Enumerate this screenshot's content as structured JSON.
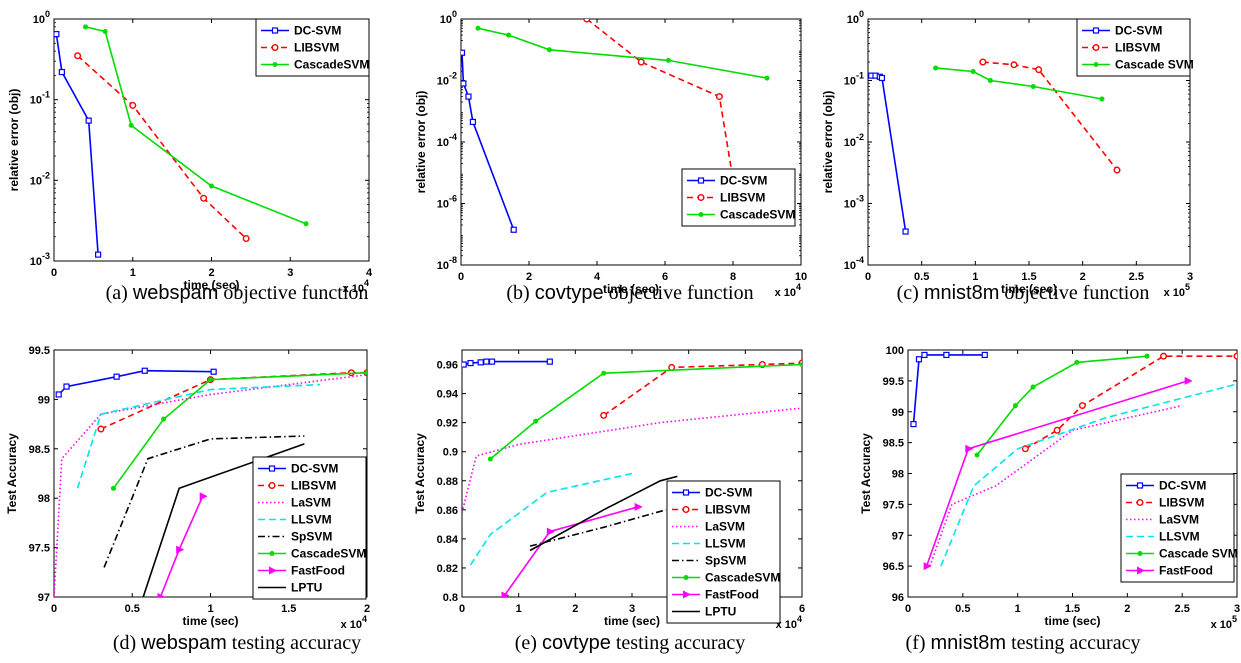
{
  "captions": [
    {
      "prefix": "(a) ",
      "dataset": "webspam",
      "suffix": " objective function"
    },
    {
      "prefix": "(b) ",
      "dataset": "covtype",
      "suffix": " objective function"
    },
    {
      "prefix": "(c) ",
      "dataset": "mnist8m",
      "suffix": " objective function"
    },
    {
      "prefix": "(d) ",
      "dataset": "webspam",
      "suffix": " testing accuracy"
    },
    {
      "prefix": "(e) ",
      "dataset": "covtype",
      "suffix": " testing accuracy"
    },
    {
      "prefix": "(f) ",
      "dataset": "mnist8m",
      "suffix": " testing accuracy"
    }
  ],
  "colors": {
    "DC-SVM": "#0000ff",
    "LIBSVM": "#ff0000",
    "CascadeSVM": "#00dd00",
    "LaSVM": "#ff00ff",
    "LLSVM": "#00e5ee",
    "SpSVM": "#000000",
    "FastFood": "#ff00ff",
    "LPTU": "#000000"
  },
  "chart_data": [
    {
      "type": "line",
      "id": "a",
      "xlabel": "time (sec)",
      "ylabel": "relative error (obj)",
      "xmult": "x 10^4",
      "xlim": [
        0,
        40000
      ],
      "xticks": [
        0,
        10000,
        20000,
        30000,
        40000
      ],
      "xticklabels": [
        "0",
        "1",
        "2",
        "3",
        "4"
      ],
      "ylog": true,
      "ylim": [
        0.001,
        1
      ],
      "yticks": [
        0.001,
        0.01,
        0.1,
        1
      ],
      "yticklabels": [
        "10^-3",
        "10^-2",
        "10^-1",
        "10^0"
      ],
      "legend": "top-right",
      "series": [
        {
          "name": "DC-SVM",
          "x": [
            300,
            1000,
            4400,
            5600
          ],
          "y": [
            0.65,
            0.22,
            0.055,
            0.0012
          ]
        },
        {
          "name": "LIBSVM",
          "x": [
            3000,
            10000,
            19000,
            24400
          ],
          "y": [
            0.35,
            0.085,
            0.006,
            0.0019
          ]
        },
        {
          "name": "CascadeSVM",
          "x": [
            4000,
            6500,
            9800,
            20000,
            32000
          ],
          "y": [
            0.8,
            0.7,
            0.048,
            0.0085,
            0.0029
          ]
        }
      ]
    },
    {
      "type": "line",
      "id": "b",
      "xlabel": "time (sec)",
      "ylabel": "relative error (obj)",
      "xmult": "x 10^4",
      "xlim": [
        0,
        100000
      ],
      "xticks": [
        0,
        20000,
        40000,
        60000,
        80000,
        100000
      ],
      "xticklabels": [
        "0",
        "2",
        "4",
        "6",
        "8",
        "10"
      ],
      "ylog": true,
      "ylim": [
        1e-08,
        1
      ],
      "yticks": [
        1e-08,
        1e-06,
        0.0001,
        0.01,
        1
      ],
      "yticklabels": [
        "10^-8",
        "10^-6",
        "10^-4",
        "10^-2",
        "10^0"
      ],
      "legend": "bottom-right",
      "series": [
        {
          "name": "DC-SVM",
          "x": [
            300,
            700,
            2200,
            3500,
            15500
          ],
          "y": [
            0.08,
            0.008,
            0.003,
            0.00045,
            1.4e-07
          ]
        },
        {
          "name": "LIBSVM",
          "x": [
            37000,
            53000,
            76000,
            81000
          ],
          "y": [
            1,
            0.04,
            0.003,
            1.3e-06
          ]
        },
        {
          "name": "CascadeSVM",
          "x": [
            5000,
            14000,
            26000,
            61000,
            90000
          ],
          "y": [
            0.5,
            0.3,
            0.1,
            0.045,
            0.012
          ]
        }
      ]
    },
    {
      "type": "line",
      "id": "c",
      "xlabel": "time (sec)",
      "ylabel": "relative error (obj)",
      "xmult": "x 10^5",
      "xlim": [
        0,
        300000
      ],
      "xticks": [
        0,
        50000,
        100000,
        150000,
        200000,
        250000,
        300000
      ],
      "xticklabels": [
        "0",
        "0.5",
        "1",
        "1.5",
        "2",
        "2.5",
        "3"
      ],
      "ylog": true,
      "ylim": [
        0.0001,
        1
      ],
      "yticks": [
        0.0001,
        0.001,
        0.01,
        0.1,
        1
      ],
      "yticklabels": [
        "10^-4",
        "10^-3",
        "10^-2",
        "10^-1",
        "10^0"
      ],
      "legend": "top-right",
      "series": [
        {
          "name": "DC-SVM",
          "x": [
            3000,
            7000,
            11000,
            13000,
            35000
          ],
          "y": [
            0.12,
            0.12,
            0.115,
            0.11,
            0.00035
          ]
        },
        {
          "name": "LIBSVM",
          "x": [
            107000,
            136000,
            159000,
            232000
          ],
          "y": [
            0.2,
            0.18,
            0.15,
            0.0035
          ]
        },
        {
          "name": "Cascade SVM",
          "x": [
            63000,
            98000,
            114000,
            154000,
            218000
          ],
          "y": [
            0.16,
            0.14,
            0.1,
            0.08,
            0.05
          ]
        }
      ]
    },
    {
      "type": "line",
      "id": "d",
      "xlabel": "time (sec)",
      "ylabel": "Test Accuracy",
      "xmult": "x 10^4",
      "xlim": [
        0,
        20000
      ],
      "xticks": [
        0,
        5000,
        10000,
        15000,
        20000
      ],
      "xticklabels": [
        "0",
        "0.5",
        "1",
        "1.5",
        "2"
      ],
      "ylog": false,
      "ylim": [
        97,
        99.5
      ],
      "yticks": [
        97,
        97.5,
        98,
        98.5,
        99,
        99.5
      ],
      "yticklabels": [
        "97",
        "97.5",
        "98",
        "98.5",
        "99",
        "99.5"
      ],
      "legend": "bottom-right",
      "series": [
        {
          "name": "DC-SVM",
          "x": [
            300,
            800,
            4000,
            5800,
            10200
          ],
          "y": [
            99.05,
            99.13,
            99.23,
            99.29,
            99.28
          ]
        },
        {
          "name": "LIBSVM",
          "x": [
            3000,
            10000,
            19000,
            20000
          ],
          "y": [
            98.7,
            99.2,
            99.27,
            99.27
          ]
        },
        {
          "name": "LaSVM",
          "x": [
            0,
            500,
            3000,
            10000,
            20000
          ],
          "y": [
            97,
            98.4,
            98.85,
            99.05,
            99.25
          ]
        },
        {
          "name": "LLSVM",
          "x": [
            1500,
            3000,
            10000,
            17000
          ],
          "y": [
            98.1,
            98.85,
            99.1,
            99.15
          ]
        },
        {
          "name": "SpSVM",
          "x": [
            3200,
            6000,
            10000,
            16000
          ],
          "y": [
            97.3,
            98.4,
            98.6,
            98.63
          ]
        },
        {
          "name": "CascadeSVM",
          "x": [
            3800,
            7000,
            10000,
            20000
          ],
          "y": [
            98.1,
            98.8,
            99.2,
            99.27
          ]
        },
        {
          "name": "FastFood",
          "x": [
            6800,
            8000,
            9500
          ],
          "y": [
            97,
            97.48,
            98.02
          ]
        },
        {
          "name": "LPTU",
          "x": [
            5700,
            8000,
            16000
          ],
          "y": [
            97,
            98.1,
            98.55
          ]
        }
      ]
    },
    {
      "type": "line",
      "id": "e",
      "xlabel": "time (sec)",
      "ylabel": "Test Accuracy",
      "xmult": "x 10^4",
      "xlim": [
        0,
        60000
      ],
      "xticks": [
        0,
        10000,
        20000,
        30000,
        40000,
        50000,
        60000
      ],
      "xticklabels": [
        "0",
        "1",
        "2",
        "3",
        "4",
        "5",
        "6"
      ],
      "ylog": false,
      "ylim": [
        0.8,
        0.97
      ],
      "yticks": [
        0.8,
        0.82,
        0.84,
        0.86,
        0.88,
        0.9,
        0.92,
        0.94,
        0.96
      ],
      "yticklabels": [
        "0.8",
        "0.82",
        "0.84",
        "0.86",
        "0.88",
        "0.9",
        "0.92",
        "0.94",
        "0.96"
      ],
      "legend": "right",
      "series": [
        {
          "name": "DC-SVM",
          "x": [
            300,
            1500,
            3300,
            4300,
            5300,
            15500
          ],
          "y": [
            0.96,
            0.961,
            0.9615,
            0.962,
            0.962,
            0.962
          ]
        },
        {
          "name": "LIBSVM",
          "x": [
            25000,
            37000,
            53000,
            60000
          ],
          "y": [
            0.925,
            0.958,
            0.96,
            0.961
          ]
        },
        {
          "name": "LaSVM",
          "x": [
            0,
            2500,
            10000,
            35000,
            60000
          ],
          "y": [
            0.858,
            0.897,
            0.905,
            0.92,
            0.93
          ]
        },
        {
          "name": "LLSVM",
          "x": [
            1500,
            5000,
            15000,
            30000
          ],
          "y": [
            0.822,
            0.843,
            0.872,
            0.885
          ]
        },
        {
          "name": "SpSVM",
          "x": [
            12000,
            25000,
            36000
          ],
          "y": [
            0.835,
            0.848,
            0.86
          ]
        },
        {
          "name": "CascadeSVM",
          "x": [
            5000,
            13000,
            25000,
            60000
          ],
          "y": [
            0.895,
            0.921,
            0.954,
            0.96
          ]
        },
        {
          "name": "FastFood",
          "x": [
            7500,
            15500,
            31000
          ],
          "y": [
            0.801,
            0.845,
            0.862
          ]
        },
        {
          "name": "LPTU",
          "x": [
            12000,
            25000,
            35000,
            38000
          ],
          "y": [
            0.832,
            0.86,
            0.88,
            0.883
          ]
        }
      ]
    },
    {
      "type": "line",
      "id": "f",
      "xlabel": "time (sec)",
      "ylabel": "Test Accuracy",
      "xmult": "x 10^5",
      "xlim": [
        0,
        300000
      ],
      "xticks": [
        0,
        50000,
        100000,
        150000,
        200000,
        250000,
        300000
      ],
      "xticklabels": [
        "0",
        "0.5",
        "1",
        "1.5",
        "2",
        "2.5",
        "3"
      ],
      "ylog": false,
      "ylim": [
        96,
        100
      ],
      "yticks": [
        96,
        96.5,
        97,
        97.5,
        98,
        98.5,
        99,
        99.5,
        100
      ],
      "yticklabels": [
        "96",
        "96.5",
        "97",
        "97.5",
        "98",
        "98.5",
        "99",
        "99.5",
        "100"
      ],
      "legend": "bottom-right",
      "series": [
        {
          "name": "DC-SVM",
          "x": [
            5000,
            10000,
            15000,
            35000,
            70000
          ],
          "y": [
            98.8,
            99.85,
            99.92,
            99.92,
            99.92
          ]
        },
        {
          "name": "LIBSVM",
          "x": [
            107000,
            136000,
            159000,
            233000,
            300000
          ],
          "y": [
            98.4,
            98.7,
            99.1,
            99.9,
            99.9
          ]
        },
        {
          "name": "LaSVM",
          "x": [
            20000,
            40000,
            80000,
            150000,
            250000
          ],
          "y": [
            96.5,
            97.5,
            97.8,
            98.7,
            99.1
          ]
        },
        {
          "name": "LLSVM",
          "x": [
            30000,
            60000,
            100000,
            180000,
            300000
          ],
          "y": [
            96.5,
            97.8,
            98.4,
            98.9,
            99.45
          ]
        },
        {
          "name": "Cascade SVM",
          "x": [
            63000,
            98000,
            114000,
            154000,
            218000
          ],
          "y": [
            98.3,
            99.1,
            99.4,
            99.8,
            99.9
          ]
        },
        {
          "name": "FastFood",
          "x": [
            17000,
            55000,
            255000
          ],
          "y": [
            96.5,
            98.4,
            99.5
          ]
        }
      ]
    }
  ]
}
